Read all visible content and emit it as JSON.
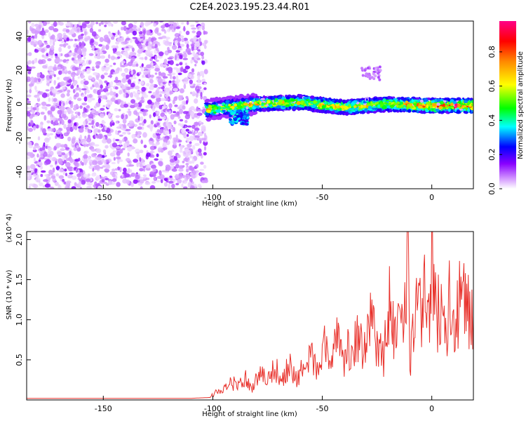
{
  "page_title": "C2E4.2023.195.23.44.R01",
  "chart_data": [
    {
      "type": "heatmap",
      "xlabel": "Height of straight line (km)",
      "ylabel": "Frequency (Hz)",
      "xlim": [
        -185,
        19
      ],
      "ylim": [
        -50,
        49
      ],
      "xticks": [
        -150,
        -100,
        -50,
        0
      ],
      "yticks": [
        -40,
        -20,
        0,
        20,
        40
      ],
      "colorbar": {
        "label": "Normalized spectral amplitude",
        "range": [
          0,
          0.98
        ],
        "ticks": [
          "0.0",
          "0.2",
          "0.4",
          "0.6",
          "0.8"
        ],
        "tick_values": [
          0,
          0.2,
          0.4,
          0.6,
          0.8
        ],
        "colormap": [
          "#ffffff",
          "#8800ff",
          "#0000ff",
          "#00ffff",
          "#00ff00",
          "#ffff00",
          "#ff8800",
          "#ff0000",
          "#ff0088"
        ]
      },
      "regions": [
        {
          "description": "noise",
          "x_range": [
            -185,
            -103
          ],
          "freq_range": [
            -50,
            49
          ],
          "amplitude_range": [
            0.0,
            0.12
          ]
        },
        {
          "description": "signal band",
          "x_range": [
            -103,
            19
          ],
          "center_freq": [
            [
              -100,
              -3
            ],
            [
              -80,
              0
            ],
            [
              -60,
              1
            ],
            [
              -40,
              -2
            ],
            [
              -20,
              0
            ],
            [
              0,
              -1
            ],
            [
              19,
              -1
            ]
          ],
          "amplitude_range": [
            0.1,
            0.98
          ]
        }
      ]
    },
    {
      "type": "line",
      "xlabel": "Height of straight line (km)",
      "ylabel": "SNR (10 * v/v)",
      "y_multiplier_label": "(x10^4)",
      "xlim": [
        -185,
        19
      ],
      "ylim": [
        0,
        2.1
      ],
      "xticks": [
        -150,
        -100,
        -50,
        0
      ],
      "yticks": [
        0.5,
        1.0,
        1.5,
        2.0
      ],
      "ytick_labels": [
        "0.5",
        "1.0",
        "1.5",
        "2.0"
      ],
      "color": "#e8302a",
      "series": [
        {
          "x": [
            -185,
            -170,
            -150,
            -130,
            -110,
            -102,
            -98,
            -95,
            -92,
            -88,
            -85,
            -82,
            -78,
            -75,
            -72,
            -68,
            -65,
            -62,
            -58,
            -55,
            -52,
            -49,
            -46,
            -43,
            -40,
            -37,
            -34,
            -31,
            -28,
            -25,
            -22,
            -20,
            -18,
            -15,
            -12,
            -11,
            -10,
            -8,
            -5,
            -3,
            -1,
            0,
            2,
            5,
            7,
            8,
            9,
            10,
            12,
            14,
            16,
            18,
            19
          ],
          "y": [
            0.02,
            0.02,
            0.02,
            0.02,
            0.02,
            0.03,
            0.1,
            0.12,
            0.2,
            0.22,
            0.3,
            0.15,
            0.35,
            0.22,
            0.4,
            0.3,
            0.45,
            0.25,
            0.42,
            0.55,
            0.35,
            0.65,
            0.45,
            0.85,
            0.5,
            0.7,
            0.75,
            0.6,
            0.95,
            0.7,
            0.5,
            1.3,
            0.9,
            1.0,
            1.1,
            2.1,
            0.3,
            1.2,
            1.05,
            1.4,
            0.95,
            1.6,
            1.0,
            1.3,
            0.45,
            1.55,
            0.85,
            1.0,
            1.15,
            1.4,
            1.1,
            1.2,
            1.05
          ]
        }
      ]
    }
  ]
}
